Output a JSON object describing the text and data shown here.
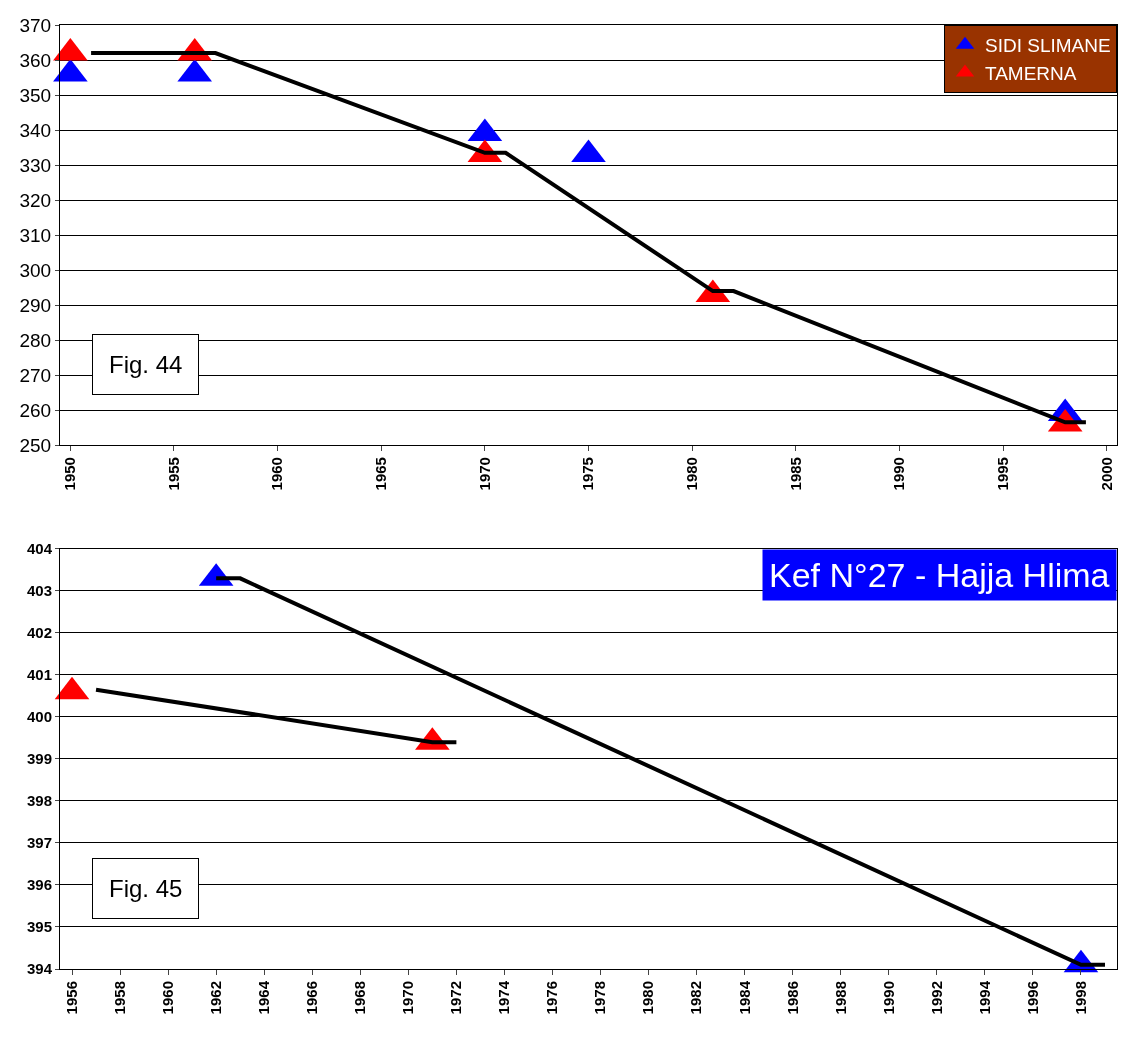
{
  "chart_data": [
    {
      "type": "scatter",
      "xlim": [
        1949.5,
        2000.5
      ],
      "xticks": [
        1950,
        1955,
        1960,
        1965,
        1970,
        1975,
        1980,
        1985,
        1990,
        1995,
        2000
      ],
      "ylim": [
        250,
        370
      ],
      "yticks": [
        250,
        260,
        270,
        280,
        290,
        300,
        310,
        320,
        330,
        340,
        350,
        360,
        370
      ],
      "grid": "y",
      "legend": "top right",
      "annotations": [
        "Fig. 44"
      ],
      "series": [
        {
          "name": "SIDI SLIMANE",
          "color": "#0000ff",
          "marker": "triangle",
          "x": [
            1950,
            1956,
            1970,
            1975,
            1998
          ],
          "values": [
            356,
            356,
            339,
            333,
            259
          ]
        },
        {
          "name": "TAMERNA",
          "color": "#ff0000",
          "marker": "triangle",
          "x": [
            1950,
            1956,
            1970,
            1981,
            1998
          ],
          "values": [
            362,
            362,
            333,
            293,
            256
          ]
        },
        {
          "type": "line",
          "color": "#000000",
          "marker": "none",
          "line_style": "solid",
          "x": [
            1951,
            1957,
            1970,
            1971,
            1981,
            1982,
            1998,
            1999
          ],
          "values": [
            362,
            362,
            333.5,
            333.5,
            294,
            294,
            256.5,
            256.5
          ]
        }
      ]
    },
    {
      "type": "scatter",
      "xlim": [
        1955.5,
        1999.5
      ],
      "xticks": [
        1956,
        1958,
        1960,
        1962,
        1964,
        1966,
        1968,
        1970,
        1972,
        1974,
        1976,
        1978,
        1980,
        1982,
        1984,
        1986,
        1988,
        1990,
        1992,
        1994,
        1996,
        1998
      ],
      "ylim": [
        394,
        404
      ],
      "yticks": [
        394,
        395,
        396,
        397,
        398,
        399,
        400,
        401,
        402,
        403,
        404
      ],
      "grid": "y",
      "annotations": [
        "Kef N°27 - Hajja Hlima",
        "Fig. 45"
      ],
      "series": [
        {
          "color": "#0000ff",
          "marker": "triangle",
          "x": [
            1962,
            1998
          ],
          "values": [
            403.3,
            394.1
          ]
        },
        {
          "color": "#ff0000",
          "marker": "triangle",
          "x": [
            1956,
            1971
          ],
          "values": [
            400.6,
            399.4
          ]
        },
        {
          "type": "line",
          "color": "#000000",
          "marker": "none",
          "line_style": "solid",
          "x": [
            1962,
            1963,
            1998,
            1999
          ],
          "values": [
            403.3,
            403.3,
            394.1,
            394.1
          ]
        },
        {
          "type": "line",
          "color": "#000000",
          "marker": "none",
          "line_style": "solid",
          "x": [
            1957,
            1971,
            1972
          ],
          "values": [
            400.65,
            399.4,
            399.4
          ]
        }
      ]
    }
  ]
}
